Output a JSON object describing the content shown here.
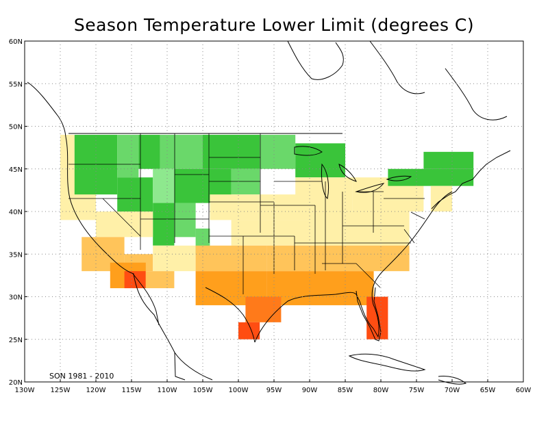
{
  "title": "Season Temperature Lower Limit (degrees C)",
  "period_label": "SON 1981 - 2010",
  "map": {
    "lon_range": [
      -130,
      -60
    ],
    "lat_range": [
      20,
      60
    ],
    "lon_ticks": [
      "130W",
      "125W",
      "120W",
      "115W",
      "110W",
      "105W",
      "100W",
      "95W",
      "90W",
      "85W",
      "80W",
      "75W",
      "70W",
      "65W",
      "60W"
    ],
    "lat_ticks": [
      "20N",
      "25N",
      "30N",
      "35N",
      "40N",
      "45N",
      "50N",
      "55N",
      "60N"
    ],
    "gridlines": true
  },
  "legend_colors": {
    "dark_green": "#3ac43a",
    "medium_green": "#6ad86a",
    "light_green": "#8ee88e",
    "pale_yellow": "#fff0a8",
    "light_orange": "#ffc45a",
    "orange": "#ff9f1c",
    "dark_orange": "#ff7a1a",
    "red_orange": "#ff4d12"
  },
  "cells": [
    {
      "lon": [
        -125,
        -123
      ],
      "lat": [
        45,
        49
      ],
      "c": "pale_yellow"
    },
    {
      "lon": [
        -125,
        -120
      ],
      "lat": [
        39,
        45
      ],
      "c": "pale_yellow"
    },
    {
      "lon": [
        -123,
        -120
      ],
      "lat": [
        42,
        49
      ],
      "c": "dark_green"
    },
    {
      "lon": [
        -120,
        -117
      ],
      "lat": [
        42,
        49
      ],
      "c": "dark_green"
    },
    {
      "lon": [
        -117,
        -114
      ],
      "lat": [
        44,
        49
      ],
      "c": "medium_green"
    },
    {
      "lon": [
        -114,
        -111
      ],
      "lat": [
        45,
        49
      ],
      "c": "dark_green"
    },
    {
      "lon": [
        -111,
        -105
      ],
      "lat": [
        45,
        49
      ],
      "c": "medium_green"
    },
    {
      "lon": [
        -105,
        -97
      ],
      "lat": [
        45,
        49
      ],
      "c": "dark_green"
    },
    {
      "lon": [
        -97,
        -92
      ],
      "lat": [
        45,
        49
      ],
      "c": "medium_green"
    },
    {
      "lon": [
        -92,
        -85
      ],
      "lat": [
        44,
        48
      ],
      "c": "dark_green"
    },
    {
      "lon": [
        -117,
        -112
      ],
      "lat": [
        40,
        44
      ],
      "c": "dark_green"
    },
    {
      "lon": [
        -112,
        -109
      ],
      "lat": [
        41,
        45
      ],
      "c": "light_green"
    },
    {
      "lon": [
        -109,
        -101
      ],
      "lat": [
        41,
        45
      ],
      "c": "dark_green"
    },
    {
      "lon": [
        -101,
        -97
      ],
      "lat": [
        42,
        45
      ],
      "c": "medium_green"
    },
    {
      "lon": [
        -112,
        -109
      ],
      "lat": [
        36,
        41
      ],
      "c": "dark_green"
    },
    {
      "lon": [
        -109,
        -106
      ],
      "lat": [
        37,
        41
      ],
      "c": "medium_green"
    },
    {
      "lon": [
        -106,
        -104
      ],
      "lat": [
        35,
        38
      ],
      "c": "medium_green"
    },
    {
      "lon": [
        -120,
        -112
      ],
      "lat": [
        37,
        40
      ],
      "c": "pale_yellow"
    },
    {
      "lon": [
        -104,
        -90
      ],
      "lat": [
        39,
        42
      ],
      "c": "pale_yellow"
    },
    {
      "lon": [
        -92,
        -84
      ],
      "lat": [
        40,
        44
      ],
      "c": "pale_yellow"
    },
    {
      "lon": [
        -84,
        -74
      ],
      "lat": [
        40,
        44
      ],
      "c": "pale_yellow"
    },
    {
      "lon": [
        -79,
        -67
      ],
      "lat": [
        43,
        45
      ],
      "c": "dark_green"
    },
    {
      "lon": [
        -74,
        -67
      ],
      "lat": [
        45,
        47
      ],
      "c": "dark_green"
    },
    {
      "lon": [
        -73,
        -70
      ],
      "lat": [
        40,
        43
      ],
      "c": "pale_yellow"
    },
    {
      "lon": [
        -101,
        -90
      ],
      "lat": [
        36,
        39
      ],
      "c": "pale_yellow"
    },
    {
      "lon": [
        -90,
        -76
      ],
      "lat": [
        36,
        40
      ],
      "c": "pale_yellow"
    },
    {
      "lon": [
        -122,
        -116
      ],
      "lat": [
        33,
        37
      ],
      "c": "light_orange"
    },
    {
      "lon": [
        -116,
        -112
      ],
      "lat": [
        33,
        35
      ],
      "c": "light_orange"
    },
    {
      "lon": [
        -112,
        -106
      ],
      "lat": [
        33,
        36
      ],
      "c": "pale_yellow"
    },
    {
      "lon": [
        -106,
        -96
      ],
      "lat": [
        33,
        36
      ],
      "c": "light_orange"
    },
    {
      "lon": [
        -96,
        -76
      ],
      "lat": [
        33,
        36
      ],
      "c": "light_orange"
    },
    {
      "lon": [
        -118,
        -113
      ],
      "lat": [
        31,
        34
      ],
      "c": "orange"
    },
    {
      "lon": [
        -116,
        -113
      ],
      "lat": [
        31,
        33
      ],
      "c": "red_orange"
    },
    {
      "lon": [
        -113,
        -109
      ],
      "lat": [
        31,
        33
      ],
      "c": "light_orange"
    },
    {
      "lon": [
        -106,
        -96
      ],
      "lat": [
        29,
        33
      ],
      "c": "orange"
    },
    {
      "lon": [
        -96,
        -81
      ],
      "lat": [
        29,
        33
      ],
      "c": "orange"
    },
    {
      "lon": [
        -99,
        -94
      ],
      "lat": [
        27,
        30
      ],
      "c": "dark_orange"
    },
    {
      "lon": [
        -100,
        -97
      ],
      "lat": [
        25,
        27
      ],
      "c": "red_orange"
    },
    {
      "lon": [
        -82,
        -79
      ],
      "lat": [
        25,
        30
      ],
      "c": "red_orange"
    }
  ]
}
